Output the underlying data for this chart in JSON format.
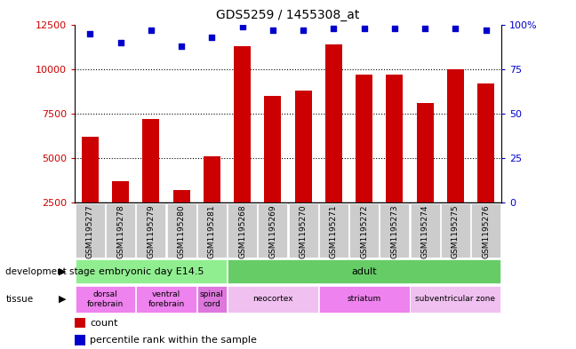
{
  "title": "GDS5259 / 1455308_at",
  "samples": [
    "GSM1195277",
    "GSM1195278",
    "GSM1195279",
    "GSM1195280",
    "GSM1195281",
    "GSM1195268",
    "GSM1195269",
    "GSM1195270",
    "GSM1195271",
    "GSM1195272",
    "GSM1195273",
    "GSM1195274",
    "GSM1195275",
    "GSM1195276"
  ],
  "counts": [
    6200,
    3700,
    7200,
    3200,
    5100,
    11300,
    8500,
    8800,
    11400,
    9700,
    9700,
    8100,
    10000,
    9200
  ],
  "percentiles": [
    95,
    90,
    97,
    88,
    93,
    99,
    97,
    97,
    98,
    98,
    98,
    98,
    98,
    97
  ],
  "ylim_left": [
    2500,
    12500
  ],
  "ylim_right": [
    0,
    100
  ],
  "bar_color": "#cc0000",
  "dot_color": "#0000cc",
  "background_color": "#ffffff",
  "tick_label_color_left": "#cc0000",
  "tick_label_color_right": "#0000cc",
  "yticks_left": [
    2500,
    5000,
    7500,
    10000,
    12500
  ],
  "ytick_labels_left": [
    "2500",
    "5000",
    "7500",
    "10000",
    "12500"
  ],
  "yticks_right": [
    0,
    25,
    50,
    75,
    100
  ],
  "ytick_labels_right": [
    "0",
    "25",
    "50",
    "75",
    "100%"
  ],
  "dotted_lines": [
    5000,
    7500,
    10000
  ],
  "dev_stage_groups": [
    {
      "label": "embryonic day E14.5",
      "start": 0,
      "end": 5,
      "color": "#90ee90"
    },
    {
      "label": "adult",
      "start": 5,
      "end": 14,
      "color": "#66cc66"
    }
  ],
  "tissue_groups": [
    {
      "label": "dorsal\nforebrain",
      "start": 0,
      "end": 2,
      "color": "#ee82ee"
    },
    {
      "label": "ventral\nforebrain",
      "start": 2,
      "end": 4,
      "color": "#ee82ee"
    },
    {
      "label": "spinal\ncord",
      "start": 4,
      "end": 5,
      "color": "#dd77dd"
    },
    {
      "label": "neocortex",
      "start": 5,
      "end": 8,
      "color": "#f0c0f0"
    },
    {
      "label": "striatum",
      "start": 8,
      "end": 11,
      "color": "#ee82ee"
    },
    {
      "label": "subventricular zone",
      "start": 11,
      "end": 14,
      "color": "#f0c0f0"
    }
  ],
  "header_bg": "#cccccc",
  "bar_width": 0.55,
  "n": 14
}
